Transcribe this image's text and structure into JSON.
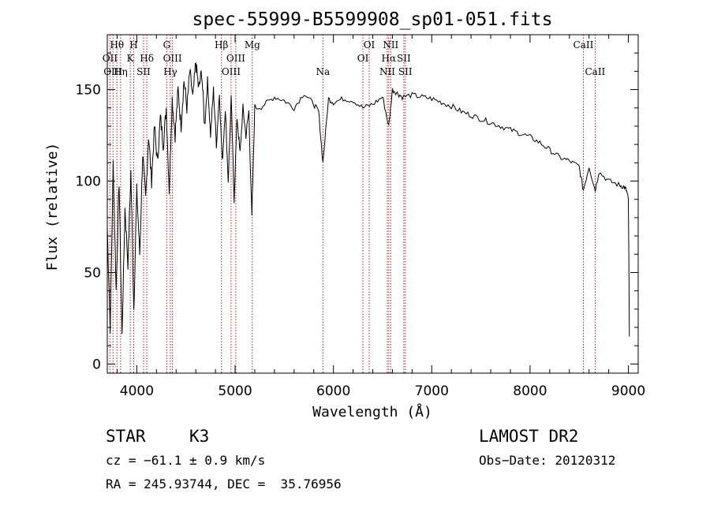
{
  "chart_data": {
    "type": "line",
    "title": "spec-55999-B5599908_sp01-051.fits",
    "xlabel": "Wavelength (Å)",
    "ylabel": "Flux (relative)",
    "xlim": [
      3700,
      9100
    ],
    "ylim": [
      -5,
      180
    ],
    "xticks": [
      4000,
      5000,
      6000,
      7000,
      8000,
      9000
    ],
    "yticks": [
      0,
      50,
      100,
      150
    ],
    "grid": false,
    "line_color": "#000000",
    "marker_color": "#b22222",
    "series": [
      {
        "x": [
          3700,
          3730,
          3760,
          3790,
          3820,
          3850,
          3880,
          3910,
          3940,
          3970,
          4000,
          4030,
          4060,
          4090,
          4120,
          4150,
          4180,
          4210,
          4240,
          4270,
          4300,
          4330,
          4360,
          4390,
          4420,
          4450,
          4480,
          4510,
          4540,
          4570,
          4600,
          4630,
          4660,
          4690,
          4720,
          4750,
          4780,
          4810,
          4840,
          4870,
          4900,
          4930,
          4960,
          4990,
          5020,
          5050,
          5080,
          5110,
          5140,
          5170,
          5200,
          5300,
          5400,
          5500,
          5600,
          5700,
          5800,
          5850,
          5893,
          5950,
          6000,
          6100,
          6200,
          6300,
          6400,
          6500,
          6563,
          6600,
          6650,
          6700,
          6800,
          6900,
          7000,
          7100,
          7200,
          7300,
          7400,
          7500,
          7600,
          7700,
          7800,
          7900,
          8000,
          8100,
          8200,
          8300,
          8400,
          8498,
          8542,
          8600,
          8662,
          8700,
          8800,
          8900,
          8950,
          8980,
          9000,
          9010
        ],
        "y": [
          75,
          20,
          110,
          40,
          100,
          15,
          85,
          55,
          105,
          30,
          95,
          60,
          115,
          90,
          125,
          100,
          130,
          110,
          135,
          120,
          140,
          95,
          145,
          125,
          150,
          130,
          155,
          140,
          160,
          145,
          165,
          150,
          160,
          130,
          155,
          125,
          150,
          120,
          148,
          110,
          140,
          100,
          145,
          90,
          135,
          115,
          140,
          125,
          138,
          80,
          140,
          142,
          146,
          144,
          140,
          148,
          142,
          138,
          110,
          145,
          143,
          145,
          144,
          140,
          142,
          146,
          130,
          150,
          148,
          146,
          147,
          146,
          145,
          143,
          141,
          138,
          136,
          134,
          132,
          130,
          128,
          126,
          124,
          121,
          117,
          113,
          111,
          108,
          95,
          108,
          95,
          105,
          100,
          98,
          97,
          95,
          90,
          15
        ]
      }
    ],
    "lines": [
      {
        "name": "Hθ",
        "x": 3798,
        "tier": 0
      },
      {
        "name": "OII",
        "x": 3727,
        "tier": 1
      },
      {
        "name": "OIII",
        "x": 3758,
        "tier": 2
      },
      {
        "name": "Hη",
        "x": 3835,
        "tier": 2
      },
      {
        "name": "H",
        "x": 3969,
        "tier": 0
      },
      {
        "name": "K",
        "x": 3934,
        "tier": 1
      },
      {
        "name": "Hδ",
        "x": 4102,
        "tier": 1
      },
      {
        "name": "SII",
        "x": 4069,
        "tier": 2
      },
      {
        "name": "G",
        "x": 4305,
        "tier": 0
      },
      {
        "name": "OIII",
        "x": 4363,
        "tier": 1
      },
      {
        "name": "Hγ",
        "x": 4341,
        "tier": 2
      },
      {
        "name": "Hβ",
        "x": 4861,
        "tier": 0
      },
      {
        "name": "OIII",
        "x": 5007,
        "tier": 1
      },
      {
        "name": "OIII",
        "x": 4959,
        "tier": 2
      },
      {
        "name": "Mg",
        "x": 5175,
        "tier": 0
      },
      {
        "name": "Na",
        "x": 5893,
        "tier": 2
      },
      {
        "name": "OI",
        "x": 6364,
        "tier": 0
      },
      {
        "name": "OI",
        "x": 6300,
        "tier": 1
      },
      {
        "name": "NII",
        "x": 6583,
        "tier": 0
      },
      {
        "name": "Hα",
        "x": 6563,
        "tier": 1
      },
      {
        "name": "SII",
        "x": 6716,
        "tier": 1
      },
      {
        "name": "NII",
        "x": 6548,
        "tier": 2
      },
      {
        "name": "SII",
        "x": 6731,
        "tier": 2
      },
      {
        "name": "CaII",
        "x": 8542,
        "tier": 0
      },
      {
        "name": "CaII",
        "x": 8662,
        "tier": 2
      }
    ]
  },
  "info": {
    "class": "STAR",
    "subclass": "K3",
    "survey": "LAMOST DR2",
    "cz": "cz = −61.1 ± 0.9 km/s",
    "obs_date": "Obs−Date: 20120312",
    "coords": "RA = 245.93744, DEC =  35.76956"
  }
}
